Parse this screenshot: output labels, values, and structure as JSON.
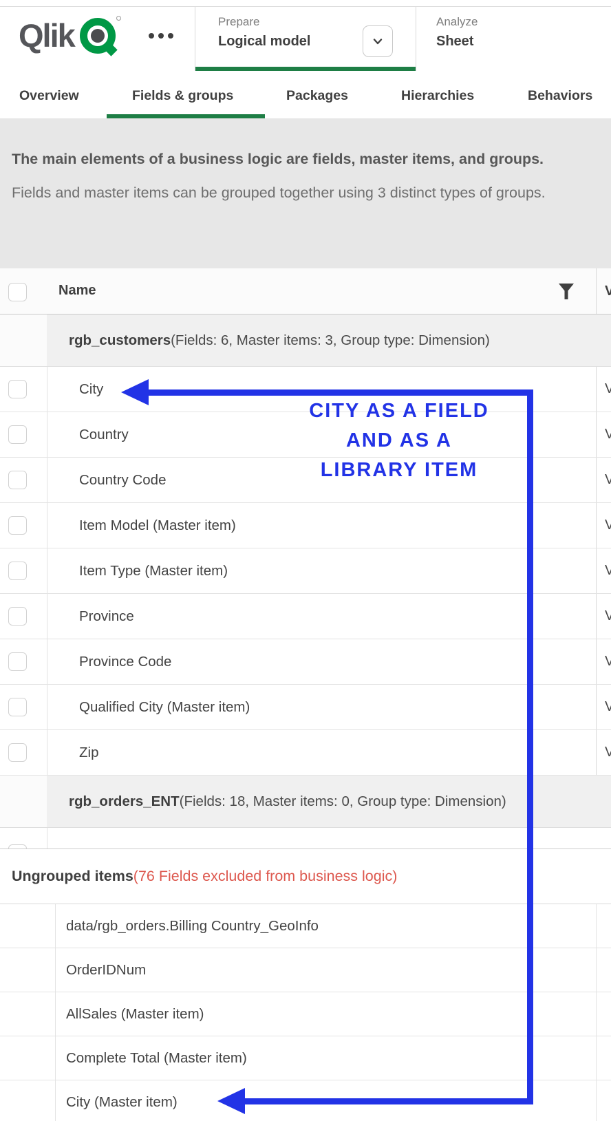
{
  "colors": {
    "accent_green": "#009845",
    "underline_green": "#1e7e45",
    "annotation_blue": "#2233e6",
    "excluded_red": "#dd584e"
  },
  "header": {
    "logo": "Qlik",
    "nav": [
      {
        "eyebrow": "Prepare",
        "title": "Logical model"
      },
      {
        "eyebrow": "Analyze",
        "title": "Sheet"
      }
    ]
  },
  "tabs": {
    "items": [
      {
        "label": "Overview",
        "active": false
      },
      {
        "label": "Fields & groups",
        "active": true
      },
      {
        "label": "Packages",
        "active": false
      },
      {
        "label": "Hierarchies",
        "active": false
      },
      {
        "label": "Behaviors",
        "active": false
      }
    ]
  },
  "info": {
    "line1": "The main elements of a business logic are fields, master items, and groups.",
    "line2": "Fields and master items can be grouped together using 3 distinct types of groups."
  },
  "main_table": {
    "header": {
      "name": "Name",
      "visibility": "V"
    },
    "rows": [
      {
        "type": "group",
        "name": "rgb_customers",
        "details": "(Fields: 6, Master items: 3, Group type: Dimension)"
      },
      {
        "type": "field",
        "name": "City",
        "visibility": "V"
      },
      {
        "type": "field",
        "name": "Country",
        "visibility": "V"
      },
      {
        "type": "field",
        "name": "Country Code",
        "visibility": "V"
      },
      {
        "type": "field",
        "name": "Item Model (Master item)",
        "visibility": "V"
      },
      {
        "type": "field",
        "name": "Item Type (Master item)",
        "visibility": "V"
      },
      {
        "type": "field",
        "name": "Province",
        "visibility": "V"
      },
      {
        "type": "field",
        "name": "Province Code",
        "visibility": "V"
      },
      {
        "type": "field",
        "name": "Qualified City (Master item)",
        "visibility": "V"
      },
      {
        "type": "field",
        "name": "Zip",
        "visibility": "V"
      },
      {
        "type": "group",
        "name": "rgb_orders_ENT",
        "details": "(Fields: 18, Master items: 0, Group type: Dimension)"
      },
      {
        "type": "partial"
      }
    ]
  },
  "ungrouped": {
    "title": "Ungrouped items",
    "note": "(76 Fields excluded from business logic)",
    "rows": [
      "data/rgb_orders.Billing Country_GeoInfo",
      "OrderIDNum",
      "AllSales (Master item)",
      "Complete Total (Master item)",
      "City (Master item)"
    ]
  },
  "annotation": {
    "lines": [
      "CITY AS A FIELD",
      "AND AS A",
      "LIBRARY ITEM"
    ]
  }
}
